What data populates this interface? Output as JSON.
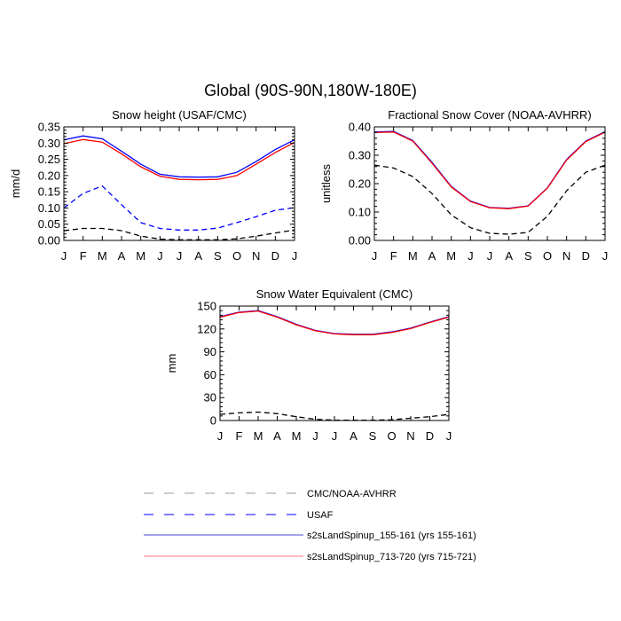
{
  "figure": {
    "title": "Global (90S-90N,180W-180E)"
  },
  "colors": {
    "obs": "#000000",
    "usaf": "#0000ff",
    "run1": "#0000ff",
    "run2": "#ff0000",
    "axis": "#000000",
    "legend_dash": "#999999",
    "legend_run1": "#4a4ad0",
    "legend_run2": "#ff7777"
  },
  "legend": {
    "items": [
      {
        "label": "CMC/NOAA-AVHRR",
        "style": "dashed",
        "color_key": "legend_dash"
      },
      {
        "label": "USAF",
        "style": "dashed",
        "color_key": "usaf"
      },
      {
        "label": "s2sLandSpinup_155-161 (yrs 155-161)",
        "style": "solid",
        "color_key": "legend_run1"
      },
      {
        "label": "s2sLandSpinup_713-720 (yrs 715-721)",
        "style": "solid",
        "color_key": "legend_run2"
      }
    ]
  },
  "chart_data": [
    {
      "type": "line",
      "title": "Snow height (USAF/CMC)",
      "ylabel": "mm/d",
      "xlabel": "",
      "categories": [
        "J",
        "F",
        "M",
        "A",
        "M",
        "J",
        "J",
        "A",
        "S",
        "O",
        "N",
        "D",
        "J"
      ],
      "ylim": [
        0,
        0.35
      ],
      "yticks": [
        0,
        0.05,
        0.1,
        0.15,
        0.2,
        0.25,
        0.3,
        0.35
      ],
      "ytick_labels": [
        "0.00",
        "0.05",
        "0.10",
        "0.15",
        "0.20",
        "0.25",
        "0.30",
        "0.35"
      ],
      "series": [
        {
          "name": "CMC/NOAA-AVHRR",
          "style": "dashed",
          "color_key": "obs",
          "values": [
            0.03,
            0.037,
            0.037,
            0.03,
            0.013,
            0.004,
            0.002,
            0.002,
            0.002,
            0.005,
            0.013,
            0.023,
            0.032
          ]
        },
        {
          "name": "USAF",
          "style": "dashed",
          "color_key": "usaf",
          "values": [
            0.1,
            0.145,
            0.168,
            0.11,
            0.055,
            0.037,
            0.032,
            0.032,
            0.038,
            0.055,
            0.073,
            0.093,
            0.101
          ]
        },
        {
          "name": "s2sLandSpinup_155-161 (yrs 155-161)",
          "style": "solid",
          "color_key": "run1",
          "values": [
            0.31,
            0.322,
            0.313,
            0.275,
            0.235,
            0.204,
            0.196,
            0.195,
            0.196,
            0.21,
            0.243,
            0.28,
            0.31
          ]
        },
        {
          "name": "s2sLandSpinup_713-720 (yrs 715-721)",
          "style": "solid",
          "color_key": "run2",
          "values": [
            0.298,
            0.311,
            0.303,
            0.267,
            0.227,
            0.198,
            0.188,
            0.187,
            0.188,
            0.2,
            0.235,
            0.271,
            0.302
          ]
        }
      ]
    },
    {
      "type": "line",
      "title": "Fractional Snow Cover (NOAA-AVHRR)",
      "ylabel": "unitless",
      "xlabel": "",
      "categories": [
        "J",
        "F",
        "M",
        "A",
        "M",
        "J",
        "J",
        "A",
        "S",
        "O",
        "N",
        "D",
        "J"
      ],
      "ylim": [
        0,
        0.4
      ],
      "yticks": [
        0,
        0.1,
        0.2,
        0.3,
        0.4
      ],
      "ytick_labels": [
        "0.00",
        "0.10",
        "0.20",
        "0.30",
        "0.40"
      ],
      "series": [
        {
          "name": "CMC/NOAA-AVHRR",
          "style": "dashed",
          "color_key": "obs",
          "values": [
            0.265,
            0.255,
            0.225,
            0.165,
            0.09,
            0.045,
            0.025,
            0.022,
            0.028,
            0.085,
            0.175,
            0.24,
            0.265
          ]
        },
        {
          "name": "s2sLandSpinup_155-161 (yrs 155-161)",
          "style": "solid",
          "color_key": "run1",
          "values": [
            0.382,
            0.384,
            0.352,
            0.275,
            0.19,
            0.138,
            0.116,
            0.113,
            0.122,
            0.185,
            0.285,
            0.35,
            0.383
          ]
        },
        {
          "name": "s2sLandSpinup_713-720 (yrs 715-721)",
          "style": "solid",
          "color_key": "run2",
          "values": [
            0.38,
            0.382,
            0.35,
            0.272,
            0.188,
            0.137,
            0.115,
            0.112,
            0.121,
            0.184,
            0.283,
            0.348,
            0.381
          ]
        }
      ]
    },
    {
      "type": "line",
      "title": "Snow Water Equivalent (CMC)",
      "ylabel": "mm",
      "xlabel": "",
      "categories": [
        "J",
        "F",
        "M",
        "A",
        "M",
        "J",
        "J",
        "A",
        "S",
        "O",
        "N",
        "D",
        "J"
      ],
      "ylim": [
        0,
        150
      ],
      "yticks": [
        0,
        30,
        60,
        90,
        120,
        150
      ],
      "ytick_labels": [
        "0",
        "30",
        "60",
        "90",
        "120",
        "150"
      ],
      "series": [
        {
          "name": "CMC/NOAA-AVHRR",
          "style": "dashed",
          "color_key": "obs",
          "values": [
            8,
            10,
            11,
            9,
            5,
            1.5,
            0.5,
            0.3,
            0.3,
            1,
            3,
            5,
            8
          ]
        },
        {
          "name": "s2sLandSpinup_155-161 (yrs 155-161)",
          "style": "solid",
          "color_key": "run1",
          "values": [
            136,
            142,
            144,
            136,
            126,
            118,
            114,
            113,
            113,
            116,
            121,
            129,
            136
          ]
        },
        {
          "name": "s2sLandSpinup_713-720 (yrs 715-721)",
          "style": "solid",
          "color_key": "run2",
          "values": [
            135.5,
            141.5,
            143.5,
            135.5,
            125.5,
            117.5,
            113.5,
            112.5,
            112.5,
            115.5,
            120.5,
            128.5,
            135.5
          ]
        }
      ]
    }
  ]
}
